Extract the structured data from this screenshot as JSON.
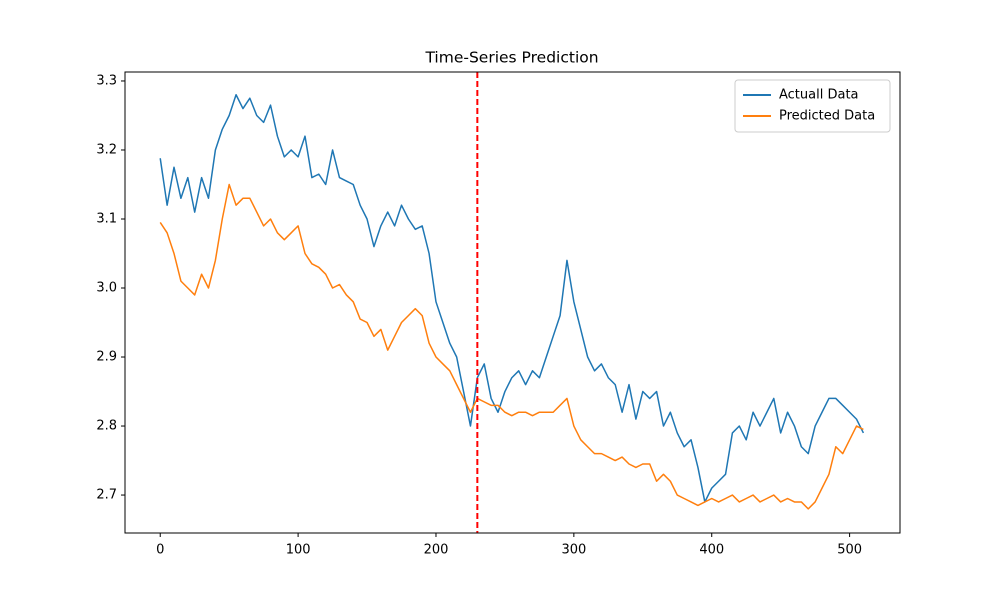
{
  "chart_data": {
    "type": "line",
    "title": "Time-Series Prediction",
    "x": [
      0,
      5,
      10,
      15,
      20,
      25,
      30,
      35,
      40,
      45,
      50,
      55,
      60,
      65,
      70,
      75,
      80,
      85,
      90,
      95,
      100,
      105,
      110,
      115,
      120,
      125,
      130,
      135,
      140,
      145,
      150,
      155,
      160,
      165,
      170,
      175,
      180,
      185,
      190,
      195,
      200,
      205,
      210,
      215,
      220,
      225,
      230,
      235,
      240,
      245,
      250,
      255,
      260,
      265,
      270,
      275,
      280,
      285,
      290,
      295,
      300,
      305,
      310,
      315,
      320,
      325,
      330,
      335,
      340,
      345,
      350,
      355,
      360,
      365,
      370,
      375,
      380,
      385,
      390,
      395,
      400,
      405,
      410,
      415,
      420,
      425,
      430,
      435,
      440,
      445,
      450,
      455,
      460,
      465,
      470,
      475,
      480,
      485,
      490,
      495,
      500,
      505,
      510
    ],
    "series": [
      {
        "name": "Actuall Data",
        "color": "#1f77b4",
        "values": [
          3.188,
          3.12,
          3.175,
          3.13,
          3.16,
          3.11,
          3.16,
          3.13,
          3.2,
          3.23,
          3.25,
          3.28,
          3.26,
          3.275,
          3.25,
          3.24,
          3.265,
          3.22,
          3.19,
          3.2,
          3.19,
          3.22,
          3.16,
          3.165,
          3.15,
          3.2,
          3.16,
          3.155,
          3.15,
          3.12,
          3.1,
          3.06,
          3.09,
          3.11,
          3.09,
          3.12,
          3.1,
          3.085,
          3.09,
          3.05,
          2.98,
          2.95,
          2.92,
          2.9,
          2.85,
          2.8,
          2.87,
          2.89,
          2.84,
          2.82,
          2.85,
          2.87,
          2.88,
          2.86,
          2.88,
          2.87,
          2.9,
          2.93,
          2.96,
          3.04,
          2.98,
          2.94,
          2.9,
          2.88,
          2.89,
          2.87,
          2.86,
          2.82,
          2.86,
          2.81,
          2.85,
          2.84,
          2.85,
          2.8,
          2.82,
          2.79,
          2.77,
          2.78,
          2.74,
          2.69,
          2.71,
          2.72,
          2.73,
          2.79,
          2.8,
          2.78,
          2.82,
          2.8,
          2.82,
          2.84,
          2.79,
          2.82,
          2.8,
          2.77,
          2.76,
          2.8,
          2.82,
          2.84,
          2.84,
          2.83,
          2.82,
          2.81,
          2.79
        ]
      },
      {
        "name": "Predicted Data",
        "color": "#ff7f0e",
        "values": [
          3.095,
          3.08,
          3.05,
          3.01,
          3.0,
          2.99,
          3.02,
          3.0,
          3.04,
          3.1,
          3.15,
          3.12,
          3.13,
          3.13,
          3.11,
          3.09,
          3.1,
          3.08,
          3.07,
          3.08,
          3.09,
          3.05,
          3.035,
          3.03,
          3.02,
          3.0,
          3.005,
          2.99,
          2.98,
          2.955,
          2.95,
          2.93,
          2.94,
          2.91,
          2.93,
          2.95,
          2.96,
          2.97,
          2.96,
          2.92,
          2.9,
          2.89,
          2.88,
          2.86,
          2.84,
          2.82,
          2.84,
          2.835,
          2.83,
          2.83,
          2.82,
          2.815,
          2.82,
          2.82,
          2.815,
          2.82,
          2.82,
          2.82,
          2.83,
          2.84,
          2.8,
          2.78,
          2.77,
          2.76,
          2.76,
          2.755,
          2.75,
          2.755,
          2.745,
          2.74,
          2.745,
          2.745,
          2.72,
          2.73,
          2.72,
          2.7,
          2.695,
          2.69,
          2.685,
          2.69,
          2.695,
          2.69,
          2.695,
          2.7,
          2.69,
          2.695,
          2.7,
          2.69,
          2.695,
          2.7,
          2.69,
          2.695,
          2.69,
          2.69,
          2.68,
          2.69,
          2.71,
          2.73,
          2.77,
          2.76,
          2.78,
          2.8,
          2.795
        ]
      }
    ],
    "vline": {
      "x": 230,
      "color": "red"
    },
    "xlim": [
      -25.55,
      536.55
    ],
    "xticks": [
      0,
      100,
      200,
      300,
      400,
      500
    ],
    "ylim": [
      2.645,
      3.313
    ],
    "yticks": [
      2.7,
      2.8,
      2.9,
      {
        "value": 3,
        "label": "3.0"
      },
      3.1,
      3.2,
      3.3
    ],
    "legend": "upper right"
  }
}
